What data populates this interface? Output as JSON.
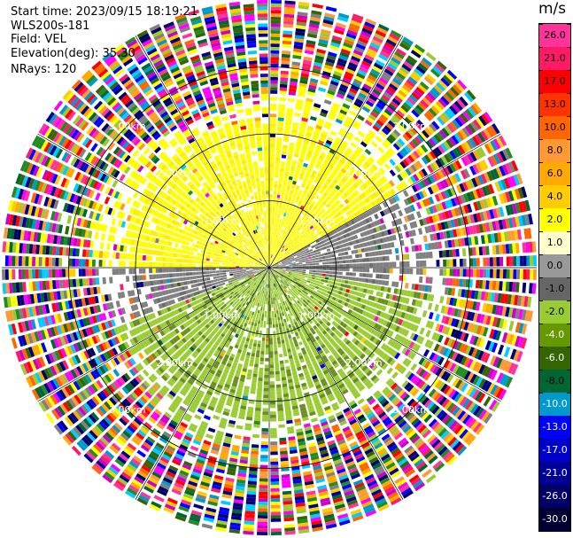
{
  "header": {
    "start_time": "Start time: 2023/09/15 18:19:21",
    "instrument": "WLS200s-181",
    "field": "Field: VEL",
    "elevation": "Elevation(deg): 35.30",
    "nrays": "NRays: 120"
  },
  "colorbar": {
    "unit": "m/s",
    "labels": [
      "26.0",
      "21.0",
      "17.0",
      "13.0",
      "10.0",
      "8.0",
      "6.0",
      "4.0",
      "2.0",
      "1.0",
      "0.0",
      "-1.0",
      "-2.0",
      "-4.0",
      "-6.0",
      "-8.0",
      "-10.0",
      "-13.0",
      "-17.0",
      "-21.0",
      "-26.0",
      "-30.0"
    ],
    "colors": [
      "#ff3399",
      "#ff1a66",
      "#ff0000",
      "#ff3300",
      "#ff6600",
      "#ff9933",
      "#ffaa00",
      "#ffcc00",
      "#ffff00",
      "#ffffcc",
      "#999999",
      "#666666",
      "#99cc33",
      "#669900",
      "#336600",
      "#006633",
      "#0099cc",
      "#0000ff",
      "#0000cc",
      "#000099",
      "#000066",
      "#000033"
    ]
  },
  "chart_data": {
    "type": "ppi",
    "field": "VEL",
    "units": "m/s",
    "nrays": 120,
    "elevation_deg": 35.3,
    "start_time": "2023/09/15 18:19:21",
    "range_rings_km": [
      1.0,
      2.0,
      3.0
    ],
    "ring_labels": [
      "1.00km",
      "2.00km",
      "3.00km"
    ],
    "max_range_km": 4.0,
    "gate_spacing_km": 0.05,
    "velocity_scale": [
      -30.0,
      -26.0,
      -21.0,
      -17.0,
      -13.0,
      -10.0,
      -8.0,
      -6.0,
      -4.0,
      -2.0,
      -1.0,
      0.0,
      1.0,
      2.0,
      4.0,
      6.0,
      8.0,
      10.0,
      13.0,
      17.0,
      21.0,
      26.0
    ],
    "azimuth_sectors": [
      {
        "az_from": 270,
        "az_to": 60,
        "range_km": [
          0.0,
          2.2
        ],
        "velocity": 2.0
      },
      {
        "az_from": 60,
        "az_to": 100,
        "range_km": [
          0.0,
          1.8
        ],
        "velocity": 0.0
      },
      {
        "az_from": 100,
        "az_to": 250,
        "range_km": [
          0.0,
          2.3
        ],
        "velocity": -2.0
      },
      {
        "az_from": 250,
        "az_to": 270,
        "range_km": [
          0.0,
          1.8
        ],
        "velocity": 0.0
      },
      {
        "az_from": 0,
        "az_to": 360,
        "range_km": [
          2.3,
          4.0
        ],
        "velocity": "noise"
      }
    ]
  }
}
